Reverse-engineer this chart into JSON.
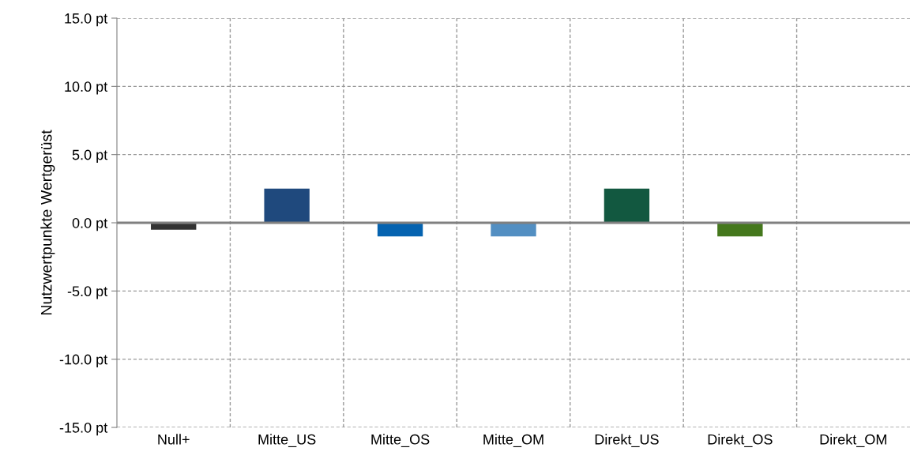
{
  "chart_data": {
    "type": "bar",
    "ylabel": "Nutzwertpunkte Wertgerüst",
    "categories": [
      "Null+",
      "Mitte_US",
      "Mitte_OS",
      "Mitte_OM",
      "Direkt_US",
      "Direkt_OS",
      "Direkt_OM"
    ],
    "values": [
      -0.5,
      2.5,
      -1.0,
      -1.0,
      2.5,
      -1.0,
      0.0
    ],
    "colors": [
      "#333333",
      "#1f497d",
      "#0563b0",
      "#538fc2",
      "#125840",
      "#45781d",
      "#808080"
    ],
    "ylim": [
      -15,
      15
    ],
    "yticks": [
      {
        "value": -15,
        "label": "-15.0 pt"
      },
      {
        "value": -10,
        "label": "-10.0 pt"
      },
      {
        "value": -5,
        "label": "-5.0 pt"
      },
      {
        "value": 0,
        "label": "0.0 pt"
      },
      {
        "value": 5,
        "label": "5.0 pt"
      },
      {
        "value": 10,
        "label": "10.0 pt"
      },
      {
        "value": 15,
        "label": "15.0 pt"
      }
    ],
    "grid": true
  }
}
